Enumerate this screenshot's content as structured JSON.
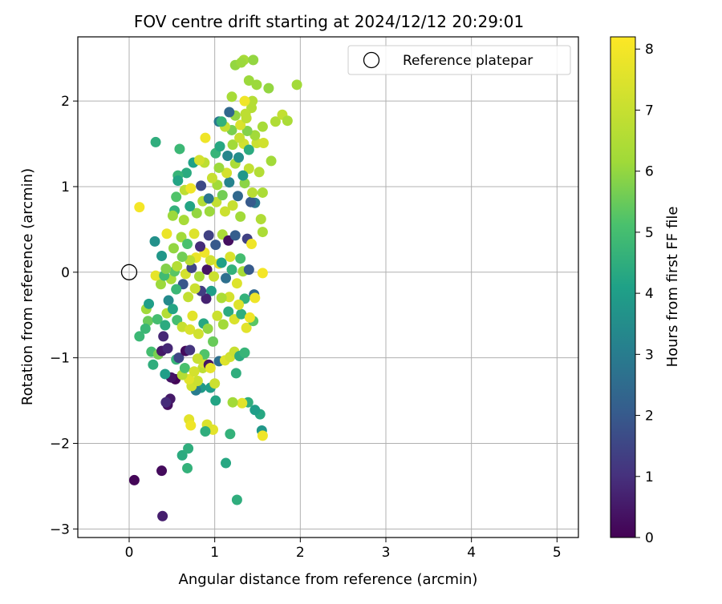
{
  "chart_data": {
    "type": "scatter",
    "title": "FOV centre drift starting at 2024/12/12 20:29:01",
    "xlabel": "Angular distance from reference (arcmin)",
    "ylabel": "Rotation from reference (arcmin)",
    "xlim": [
      -0.6,
      5.25
    ],
    "ylim": [
      -3.1,
      2.75
    ],
    "xticks": [
      0,
      1,
      2,
      3,
      4,
      5
    ],
    "yticks": [
      -3,
      -2,
      -1,
      0,
      1,
      2
    ],
    "grid": true,
    "legend_position": "top-right",
    "legend_label": "Reference platepar",
    "reference_point": {
      "x": 0,
      "y": 0
    },
    "colorbar": {
      "label": "Hours from first FF file",
      "colormap": "viridis",
      "range": [
        0,
        8.2
      ],
      "ticks": [
        0,
        1,
        2,
        3,
        4,
        5,
        6,
        7,
        8
      ]
    },
    "points": [
      {
        "x": 0.06,
        "y": -2.43,
        "c": 0.1
      },
      {
        "x": 0.38,
        "y": -2.32,
        "c": 0.2
      },
      {
        "x": 0.39,
        "y": -2.85,
        "c": 0.6
      },
      {
        "x": 0.68,
        "y": -2.29,
        "c": 4.6
      },
      {
        "x": 0.62,
        "y": -2.14,
        "c": 4.4
      },
      {
        "x": 0.69,
        "y": -2.06,
        "c": 4.5
      },
      {
        "x": 1.13,
        "y": -2.23,
        "c": 4.3
      },
      {
        "x": 1.26,
        "y": -2.66,
        "c": 4.5
      },
      {
        "x": 0.7,
        "y": -1.72,
        "c": 7.6
      },
      {
        "x": 0.72,
        "y": -1.79,
        "c": 7.9
      },
      {
        "x": 0.98,
        "y": -1.84,
        "c": 7.6
      },
      {
        "x": 0.91,
        "y": -1.78,
        "c": 7.4
      },
      {
        "x": 0.89,
        "y": -1.86,
        "c": 4.5
      },
      {
        "x": 1.18,
        "y": -1.89,
        "c": 4.6
      },
      {
        "x": 1.01,
        "y": -1.5,
        "c": 4.2
      },
      {
        "x": 0.95,
        "y": -1.35,
        "c": 4.0
      },
      {
        "x": 0.84,
        "y": -1.35,
        "c": 3.9
      },
      {
        "x": 0.78,
        "y": -1.38,
        "c": 3.0
      },
      {
        "x": 1.53,
        "y": -1.66,
        "c": 4.3
      },
      {
        "x": 1.47,
        "y": -1.61,
        "c": 4.0
      },
      {
        "x": 1.55,
        "y": -1.85,
        "c": 3.8
      },
      {
        "x": 1.56,
        "y": -1.91,
        "c": 7.9
      },
      {
        "x": 1.39,
        "y": -1.52,
        "c": 4.5
      },
      {
        "x": 1.32,
        "y": -1.53,
        "c": 7.6
      },
      {
        "x": 1.21,
        "y": -1.52,
        "c": 6.2
      },
      {
        "x": 0.45,
        "y": -1.55,
        "c": 0.3
      },
      {
        "x": 0.48,
        "y": -1.48,
        "c": 0.5
      },
      {
        "x": 0.43,
        "y": -1.52,
        "c": 0.9
      },
      {
        "x": 0.54,
        "y": -1.25,
        "c": 0.1
      },
      {
        "x": 0.49,
        "y": -1.23,
        "c": 0.4
      },
      {
        "x": 0.55,
        "y": -1.02,
        "c": 4.7
      },
      {
        "x": 0.42,
        "y": -1.19,
        "c": 4.0
      },
      {
        "x": 0.28,
        "y": -1.08,
        "c": 4.5
      },
      {
        "x": 0.26,
        "y": -0.93,
        "c": 5.0
      },
      {
        "x": 0.34,
        "y": -0.96,
        "c": 5.7
      },
      {
        "x": 0.12,
        "y": -0.75,
        "c": 4.8
      },
      {
        "x": 0.38,
        "y": -0.92,
        "c": 0.5
      },
      {
        "x": 0.45,
        "y": -0.89,
        "c": 0.8
      },
      {
        "x": 0.58,
        "y": -1.0,
        "c": 1.5
      },
      {
        "x": 0.66,
        "y": -0.92,
        "c": 0.2
      },
      {
        "x": 0.71,
        "y": -0.91,
        "c": 1.1
      },
      {
        "x": 0.86,
        "y": -1.12,
        "c": 6.8
      },
      {
        "x": 0.87,
        "y": -1.06,
        "c": 7.3
      },
      {
        "x": 0.93,
        "y": -1.08,
        "c": 0.4
      },
      {
        "x": 0.95,
        "y": -1.12,
        "c": 7.7
      },
      {
        "x": 0.88,
        "y": -0.96,
        "c": 5.2
      },
      {
        "x": 1.05,
        "y": -1.04,
        "c": 2.6
      },
      {
        "x": 1.12,
        "y": -1.03,
        "c": 7.5
      },
      {
        "x": 1.18,
        "y": -0.99,
        "c": 7.2
      },
      {
        "x": 1.23,
        "y": -0.93,
        "c": 7.0
      },
      {
        "x": 1.29,
        "y": -0.98,
        "c": 4.4
      },
      {
        "x": 1.35,
        "y": -0.94,
        "c": 4.7
      },
      {
        "x": 1.25,
        "y": -1.18,
        "c": 4.5
      },
      {
        "x": 1.0,
        "y": -1.3,
        "c": 7.1
      },
      {
        "x": 0.73,
        "y": -1.33,
        "c": 7.2
      },
      {
        "x": 0.8,
        "y": -1.27,
        "c": 7.1
      },
      {
        "x": 0.7,
        "y": -1.25,
        "c": 7.6
      },
      {
        "x": 0.62,
        "y": -1.2,
        "c": 6.6
      },
      {
        "x": 0.65,
        "y": -1.12,
        "c": 5.1
      },
      {
        "x": 0.76,
        "y": -1.16,
        "c": 7.3
      },
      {
        "x": 0.8,
        "y": -1.01,
        "c": 7.0
      },
      {
        "x": 0.2,
        "y": -0.43,
        "c": 6.2
      },
      {
        "x": 0.23,
        "y": -0.37,
        "c": 4.0
      },
      {
        "x": 0.22,
        "y": -0.57,
        "c": 5.5
      },
      {
        "x": 0.19,
        "y": -0.66,
        "c": 4.8
      },
      {
        "x": 0.33,
        "y": -0.55,
        "c": 5.0
      },
      {
        "x": 0.42,
        "y": -0.62,
        "c": 4.4
      },
      {
        "x": 0.4,
        "y": -0.75,
        "c": 0.8
      },
      {
        "x": 0.44,
        "y": -0.48,
        "c": 6.6
      },
      {
        "x": 0.46,
        "y": -0.33,
        "c": 3.4
      },
      {
        "x": 0.51,
        "y": -0.43,
        "c": 4.2
      },
      {
        "x": 0.56,
        "y": -0.56,
        "c": 5.0
      },
      {
        "x": 0.62,
        "y": -0.64,
        "c": 7.0
      },
      {
        "x": 0.71,
        "y": -0.67,
        "c": 7.4
      },
      {
        "x": 0.74,
        "y": -0.51,
        "c": 7.6
      },
      {
        "x": 0.81,
        "y": -0.72,
        "c": 7.2
      },
      {
        "x": 0.87,
        "y": -0.6,
        "c": 4.3
      },
      {
        "x": 0.92,
        "y": -0.66,
        "c": 6.0
      },
      {
        "x": 0.98,
        "y": -0.81,
        "c": 5.5
      },
      {
        "x": 1.03,
        "y": -0.51,
        "c": 7.1
      },
      {
        "x": 1.1,
        "y": -0.61,
        "c": 6.2
      },
      {
        "x": 1.16,
        "y": -0.46,
        "c": 4.4
      },
      {
        "x": 1.23,
        "y": -0.55,
        "c": 7.4
      },
      {
        "x": 1.31,
        "y": -0.49,
        "c": 4.5
      },
      {
        "x": 1.37,
        "y": -0.65,
        "c": 7.6
      },
      {
        "x": 1.45,
        "y": -0.57,
        "c": 5.3
      },
      {
        "x": 1.41,
        "y": -0.53,
        "c": 7.9
      },
      {
        "x": 1.35,
        "y": -0.31,
        "c": 4.6
      },
      {
        "x": 1.46,
        "y": -0.26,
        "c": 2.4
      },
      {
        "x": 1.47,
        "y": -0.3,
        "c": 7.9
      },
      {
        "x": 1.28,
        "y": -0.38,
        "c": 7.5
      },
      {
        "x": 1.17,
        "y": -0.29,
        "c": 7.3
      },
      {
        "x": 1.08,
        "y": -0.3,
        "c": 6.4
      },
      {
        "x": 0.96,
        "y": -0.22,
        "c": 4.0
      },
      {
        "x": 0.9,
        "y": -0.31,
        "c": 0.7
      },
      {
        "x": 0.84,
        "y": -0.22,
        "c": 1.3
      },
      {
        "x": 0.77,
        "y": -0.19,
        "c": 7.1
      },
      {
        "x": 0.69,
        "y": -0.29,
        "c": 6.9
      },
      {
        "x": 0.63,
        "y": -0.14,
        "c": 1.9
      },
      {
        "x": 0.55,
        "y": -0.2,
        "c": 4.8
      },
      {
        "x": 0.49,
        "y": -0.08,
        "c": 6.4
      },
      {
        "x": 0.37,
        "y": -0.14,
        "c": 6.1
      },
      {
        "x": 0.31,
        "y": -0.04,
        "c": 7.7
      },
      {
        "x": 0.41,
        "y": -0.04,
        "c": 4.9
      },
      {
        "x": 0.53,
        "y": 0.01,
        "c": 5.3
      },
      {
        "x": 0.66,
        "y": -0.02,
        "c": 7.3
      },
      {
        "x": 0.73,
        "y": 0.05,
        "c": 1.5
      },
      {
        "x": 0.82,
        "y": -0.05,
        "c": 6.3
      },
      {
        "x": 0.91,
        "y": 0.03,
        "c": 0.4
      },
      {
        "x": 0.99,
        "y": -0.05,
        "c": 7.1
      },
      {
        "x": 1.05,
        "y": 0.1,
        "c": 7.6
      },
      {
        "x": 1.13,
        "y": -0.07,
        "c": 2.6
      },
      {
        "x": 1.2,
        "y": 0.03,
        "c": 4.6
      },
      {
        "x": 1.26,
        "y": -0.13,
        "c": 7.5
      },
      {
        "x": 1.33,
        "y": 0.01,
        "c": 6.3
      },
      {
        "x": 1.4,
        "y": 0.03,
        "c": 2.0
      },
      {
        "x": 1.3,
        "y": 0.16,
        "c": 5.0
      },
      {
        "x": 1.18,
        "y": 0.18,
        "c": 7.4
      },
      {
        "x": 1.08,
        "y": 0.11,
        "c": 4.1
      },
      {
        "x": 0.95,
        "y": 0.14,
        "c": 7.2
      },
      {
        "x": 0.88,
        "y": 0.23,
        "c": 7.9
      },
      {
        "x": 0.78,
        "y": 0.17,
        "c": 7.8
      },
      {
        "x": 0.71,
        "y": 0.14,
        "c": 6.7
      },
      {
        "x": 0.62,
        "y": 0.18,
        "c": 5.6
      },
      {
        "x": 0.56,
        "y": 0.07,
        "c": 6.6
      },
      {
        "x": 0.43,
        "y": 0.04,
        "c": 5.8
      },
      {
        "x": 0.38,
        "y": 0.19,
        "c": 3.8
      },
      {
        "x": 0.3,
        "y": 0.36,
        "c": 3.6
      },
      {
        "x": 0.44,
        "y": 0.45,
        "c": 7.8
      },
      {
        "x": 0.52,
        "y": 0.28,
        "c": 6.0
      },
      {
        "x": 0.61,
        "y": 0.41,
        "c": 6.2
      },
      {
        "x": 0.68,
        "y": 0.33,
        "c": 5.1
      },
      {
        "x": 0.76,
        "y": 0.45,
        "c": 7.5
      },
      {
        "x": 0.83,
        "y": 0.3,
        "c": 0.9
      },
      {
        "x": 0.93,
        "y": 0.43,
        "c": 1.4
      },
      {
        "x": 1.01,
        "y": 0.32,
        "c": 2.0
      },
      {
        "x": 1.09,
        "y": 0.44,
        "c": 6.4
      },
      {
        "x": 1.16,
        "y": 0.37,
        "c": 0.3
      },
      {
        "x": 1.24,
        "y": 0.43,
        "c": 2.1
      },
      {
        "x": 1.38,
        "y": 0.39,
        "c": 1.4
      },
      {
        "x": 1.43,
        "y": 0.33,
        "c": 7.9
      },
      {
        "x": 1.54,
        "y": 0.62,
        "c": 6.5
      },
      {
        "x": 1.56,
        "y": 0.47,
        "c": 6.4
      },
      {
        "x": 1.56,
        "y": -0.01,
        "c": 8.0
      },
      {
        "x": 1.47,
        "y": 0.81,
        "c": 2.8
      },
      {
        "x": 1.42,
        "y": 0.82,
        "c": 2.0
      },
      {
        "x": 1.3,
        "y": 0.65,
        "c": 6.2
      },
      {
        "x": 1.21,
        "y": 0.78,
        "c": 7.0
      },
      {
        "x": 1.12,
        "y": 0.71,
        "c": 7.1
      },
      {
        "x": 1.02,
        "y": 0.82,
        "c": 6.9
      },
      {
        "x": 0.94,
        "y": 0.71,
        "c": 6.1
      },
      {
        "x": 0.86,
        "y": 0.83,
        "c": 6.6
      },
      {
        "x": 0.79,
        "y": 0.69,
        "c": 6.0
      },
      {
        "x": 0.71,
        "y": 0.77,
        "c": 4.2
      },
      {
        "x": 0.64,
        "y": 0.61,
        "c": 6.3
      },
      {
        "x": 0.53,
        "y": 0.72,
        "c": 4.6
      },
      {
        "x": 0.51,
        "y": 0.66,
        "c": 6.1
      },
      {
        "x": 0.12,
        "y": 0.76,
        "c": 8.0
      },
      {
        "x": 0.55,
        "y": 0.88,
        "c": 5.2
      },
      {
        "x": 0.65,
        "y": 0.96,
        "c": 6.8
      },
      {
        "x": 0.72,
        "y": 0.98,
        "c": 7.9
      },
      {
        "x": 0.84,
        "y": 1.01,
        "c": 1.6
      },
      {
        "x": 0.93,
        "y": 0.86,
        "c": 2.8
      },
      {
        "x": 1.03,
        "y": 1.02,
        "c": 6.2
      },
      {
        "x": 1.09,
        "y": 0.9,
        "c": 5.6
      },
      {
        "x": 1.17,
        "y": 1.05,
        "c": 3.2
      },
      {
        "x": 1.27,
        "y": 0.89,
        "c": 2.4
      },
      {
        "x": 1.35,
        "y": 1.04,
        "c": 5.9
      },
      {
        "x": 1.44,
        "y": 0.93,
        "c": 6.7
      },
      {
        "x": 1.56,
        "y": 0.93,
        "c": 6.4
      },
      {
        "x": 1.52,
        "y": 1.17,
        "c": 6.6
      },
      {
        "x": 1.66,
        "y": 1.3,
        "c": 6.2
      },
      {
        "x": 1.4,
        "y": 1.21,
        "c": 6.9
      },
      {
        "x": 1.33,
        "y": 1.13,
        "c": 3.8
      },
      {
        "x": 1.24,
        "y": 1.27,
        "c": 6.4
      },
      {
        "x": 1.14,
        "y": 1.16,
        "c": 7.3
      },
      {
        "x": 1.05,
        "y": 1.22,
        "c": 6.1
      },
      {
        "x": 0.97,
        "y": 1.1,
        "c": 7.0
      },
      {
        "x": 0.88,
        "y": 1.28,
        "c": 6.8
      },
      {
        "x": 0.75,
        "y": 1.28,
        "c": 4.1
      },
      {
        "x": 0.67,
        "y": 1.16,
        "c": 4.4
      },
      {
        "x": 0.57,
        "y": 1.13,
        "c": 4.7
      },
      {
        "x": 0.57,
        "y": 1.07,
        "c": 4.2
      },
      {
        "x": 0.59,
        "y": 1.44,
        "c": 4.8
      },
      {
        "x": 0.31,
        "y": 1.52,
        "c": 4.5
      },
      {
        "x": 0.82,
        "y": 1.31,
        "c": 7.3
      },
      {
        "x": 0.89,
        "y": 1.57,
        "c": 7.9
      },
      {
        "x": 1.01,
        "y": 1.39,
        "c": 4.7
      },
      {
        "x": 1.06,
        "y": 1.47,
        "c": 4.3
      },
      {
        "x": 1.15,
        "y": 1.36,
        "c": 3.3
      },
      {
        "x": 1.21,
        "y": 1.49,
        "c": 6.2
      },
      {
        "x": 1.28,
        "y": 1.34,
        "c": 3.5
      },
      {
        "x": 1.34,
        "y": 1.5,
        "c": 7.2
      },
      {
        "x": 1.4,
        "y": 1.43,
        "c": 4.4
      },
      {
        "x": 1.49,
        "y": 1.51,
        "c": 7.1
      },
      {
        "x": 1.57,
        "y": 1.51,
        "c": 7.2
      },
      {
        "x": 1.47,
        "y": 1.6,
        "c": 6.2
      },
      {
        "x": 1.38,
        "y": 1.65,
        "c": 5.8
      },
      {
        "x": 1.29,
        "y": 1.57,
        "c": 7.0
      },
      {
        "x": 1.2,
        "y": 1.66,
        "c": 5.7
      },
      {
        "x": 1.12,
        "y": 1.7,
        "c": 6.9
      },
      {
        "x": 1.05,
        "y": 1.76,
        "c": 2.9
      },
      {
        "x": 1.08,
        "y": 1.76,
        "c": 4.6
      },
      {
        "x": 1.24,
        "y": 1.83,
        "c": 6.0
      },
      {
        "x": 1.3,
        "y": 1.72,
        "c": 7.4
      },
      {
        "x": 1.37,
        "y": 1.8,
        "c": 6.8
      },
      {
        "x": 1.43,
        "y": 1.92,
        "c": 6.6
      },
      {
        "x": 1.56,
        "y": 1.7,
        "c": 6.3
      },
      {
        "x": 1.71,
        "y": 1.76,
        "c": 6.5
      },
      {
        "x": 1.79,
        "y": 1.84,
        "c": 6.9
      },
      {
        "x": 1.85,
        "y": 1.77,
        "c": 6.4
      },
      {
        "x": 1.96,
        "y": 2.19,
        "c": 6.2
      },
      {
        "x": 1.63,
        "y": 2.15,
        "c": 6.0
      },
      {
        "x": 1.49,
        "y": 2.19,
        "c": 6.1
      },
      {
        "x": 1.44,
        "y": 2.0,
        "c": 6.6
      },
      {
        "x": 1.35,
        "y": 2.0,
        "c": 7.9
      },
      {
        "x": 1.4,
        "y": 2.24,
        "c": 6.1
      },
      {
        "x": 1.2,
        "y": 2.05,
        "c": 6.3
      },
      {
        "x": 1.17,
        "y": 1.87,
        "c": 2.4
      },
      {
        "x": 1.24,
        "y": 2.42,
        "c": 6.0
      },
      {
        "x": 1.34,
        "y": 2.48,
        "c": 6.3
      },
      {
        "x": 1.45,
        "y": 2.48,
        "c": 6.0
      },
      {
        "x": 1.31,
        "y": 2.45,
        "c": 6.1
      },
      {
        "x": 1.36,
        "y": 1.85,
        "c": 6.8
      }
    ]
  }
}
